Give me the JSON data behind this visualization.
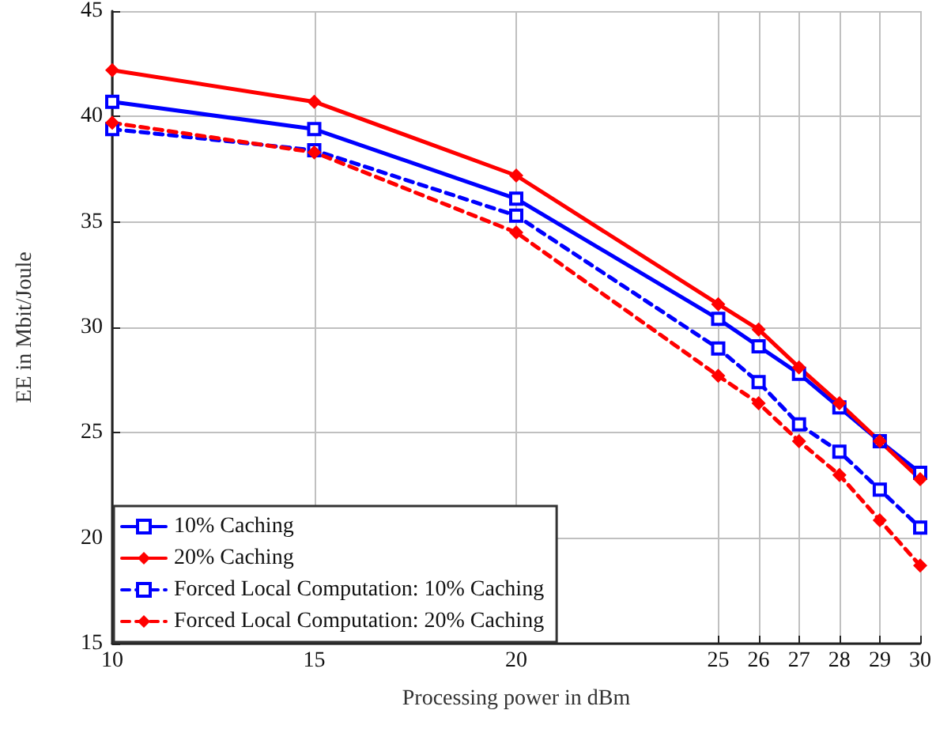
{
  "chart_data": {
    "type": "line",
    "xlabel": "Processing power in dBm",
    "ylabel": "EE in Mbit/Joule",
    "x": [
      10,
      15,
      20,
      25,
      26,
      27,
      28,
      29,
      30
    ],
    "series": [
      {
        "name": "10% Caching",
        "color": "#0000ff",
        "marker": "square",
        "line_style": "solid",
        "values": [
          40.7,
          39.4,
          36.1,
          30.4,
          29.1,
          27.8,
          26.2,
          24.6,
          23.1
        ]
      },
      {
        "name": "20% Caching",
        "color": "#ff0000",
        "marker": "diamond",
        "line_style": "solid",
        "values": [
          42.2,
          40.7,
          37.2,
          31.1,
          29.9,
          28.1,
          26.4,
          24.6,
          22.8
        ]
      },
      {
        "name": "Forced Local Computation: 10% Caching",
        "color": "#0000ff",
        "marker": "square",
        "line_style": "dashed",
        "values": [
          39.4,
          38.4,
          35.3,
          29.0,
          27.4,
          25.4,
          24.1,
          22.3,
          20.5
        ]
      },
      {
        "name": "Forced Local Computation: 20% Caching",
        "color": "#ff0000",
        "marker": "diamond",
        "line_style": "dashed",
        "values": [
          39.7,
          38.3,
          34.5,
          27.7,
          26.4,
          24.6,
          23.0,
          20.85,
          18.7
        ]
      }
    ],
    "xlim": [
      10,
      30
    ],
    "xticks": [
      10,
      15,
      20,
      25,
      26,
      27,
      28,
      29,
      30
    ],
    "ylim": [
      15,
      45
    ],
    "yticks": [
      15,
      20,
      25,
      30,
      35,
      40,
      45
    ],
    "grid": true,
    "legend": "bottom left"
  }
}
